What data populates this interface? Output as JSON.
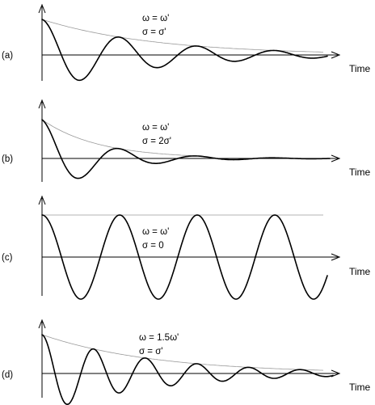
{
  "panels": [
    {
      "label": "(a)",
      "omega_text": "ω = ω'",
      "sigma_text": "σ = σ'",
      "axis_label": "Time",
      "freq_ratio": 1,
      "damping_ratio": 1,
      "description": "damped oscillation"
    },
    {
      "label": "(b)",
      "omega_text": "ω = ω'",
      "sigma_text": "σ = 2σ'",
      "axis_label": "Time",
      "freq_ratio": 1,
      "damping_ratio": 2,
      "description": "heavily damped oscillation"
    },
    {
      "label": "(c)",
      "omega_text": "ω = ω'",
      "sigma_text": "σ = 0",
      "axis_label": "Time",
      "freq_ratio": 1,
      "damping_ratio": 0,
      "description": "undamped oscillation"
    },
    {
      "label": "(d)",
      "omega_text": "ω = 1.5ω'",
      "sigma_text": "σ = σ'",
      "axis_label": "Time",
      "freq_ratio": 1.5,
      "damping_ratio": 1,
      "description": "damped oscillation, higher frequency"
    }
  ]
}
